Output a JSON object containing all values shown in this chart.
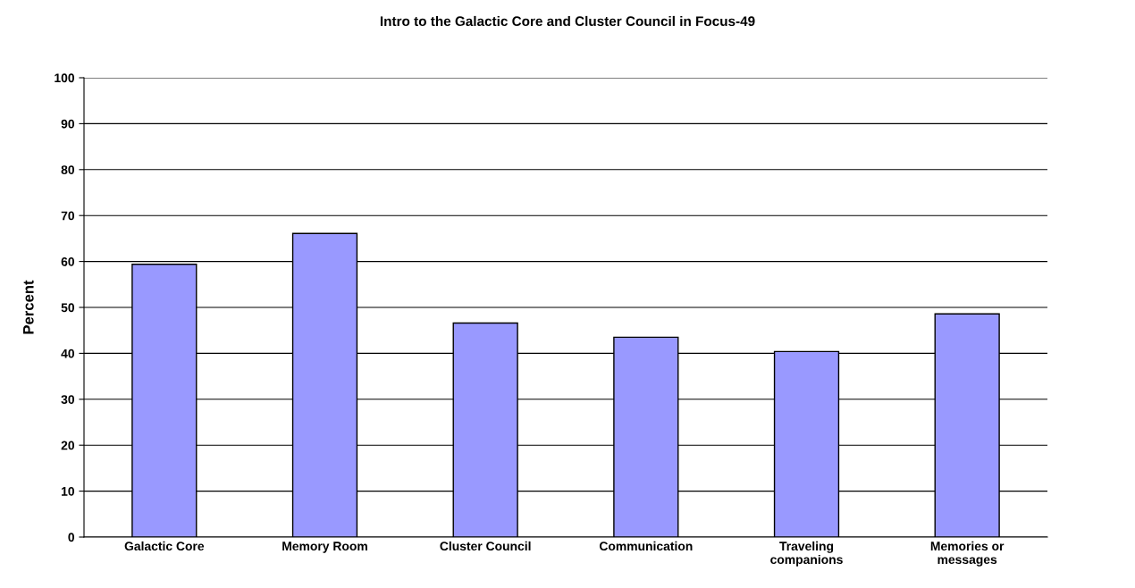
{
  "chart_data": {
    "type": "bar",
    "title": "Intro to the Galactic Core and Cluster Council in Focus-49",
    "ylabel": "Percent",
    "categories": [
      "Galactic Core",
      "Memory Room",
      "Cluster Council",
      "Communication",
      "Traveling\ncompanions",
      "Memories or\nmessages"
    ],
    "values": [
      59.4,
      66.1,
      46.6,
      43.5,
      40.4,
      48.6
    ],
    "color": "#9999ff",
    "ylim": [
      0,
      100
    ],
    "yticks": [
      0,
      10,
      20,
      30,
      40,
      50,
      60,
      70,
      80,
      90,
      100
    ],
    "grid": "y"
  }
}
